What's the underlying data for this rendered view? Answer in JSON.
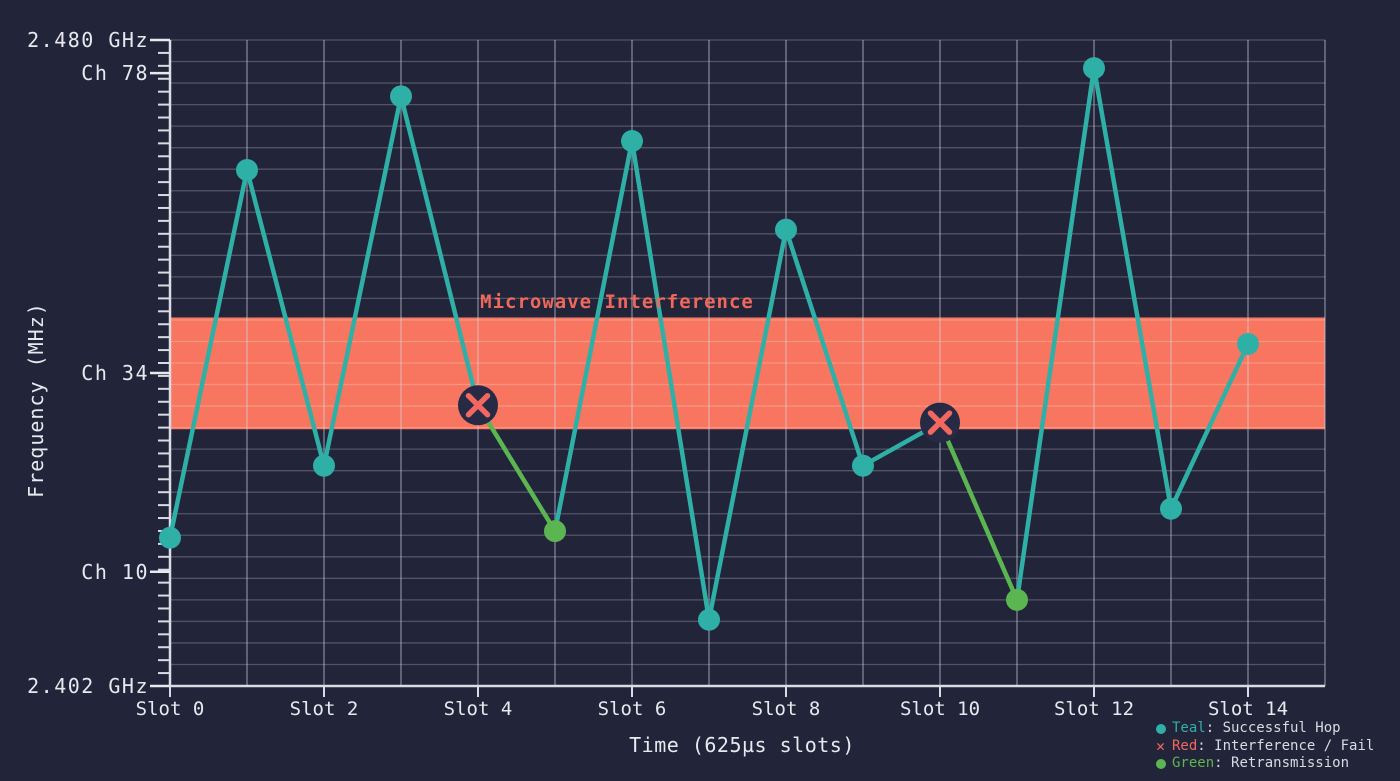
{
  "figure": {
    "background": "#22243a",
    "legend": [
      {
        "marker": "dot",
        "color": "#2fb0a7",
        "term": "Teal",
        "desc": ": Successful Hop"
      },
      {
        "marker": "x",
        "color": "#f2685f",
        "term": "Red",
        "desc": ": Interference / Fail"
      },
      {
        "marker": "dot",
        "color": "#5bb551",
        "term": "Green",
        "desc": ": Retransmission"
      }
    ]
  },
  "chart_data": {
    "type": "line",
    "title": "",
    "xlabel": "Time (625µs slots)",
    "ylabel": "Frequency (MHz)",
    "x_tick_labels": [
      "Slot 0",
      "Slot 2",
      "Slot 4",
      "Slot 6",
      "Slot 8",
      "Slot 10",
      "Slot 12",
      "Slot 14"
    ],
    "x_tick_slots": [
      0,
      2,
      4,
      6,
      8,
      10,
      12,
      14
    ],
    "x_range_slots": [
      0,
      15
    ],
    "y_range_channels": [
      0,
      78
    ],
    "y_ticks": [
      {
        "label": "2.480 GHz",
        "ch": 78
      },
      {
        "label": "Ch 78",
        "ch": 74
      },
      {
        "label": "Ch 34",
        "ch": 37.8
      },
      {
        "label": "Ch 10",
        "ch": 13.8
      },
      {
        "label": "2.402 GHz",
        "ch": 0
      }
    ],
    "grid": true,
    "legend_position": "bottom-right",
    "interference_band": {
      "label": "Microwave Interference",
      "ch_min": 31,
      "ch_max": 44.5,
      "color": "#f87660",
      "label_color": "#ef685c"
    },
    "status_colors": {
      "success": "#2fb0a7",
      "fail": "#f2685f",
      "retransmission": "#5bb551"
    },
    "fail_marker_bg": "#272a45",
    "series": {
      "name": "Frequency hop sequence",
      "points": [
        {
          "slot": 0,
          "ch": 17.9,
          "status": "success"
        },
        {
          "slot": 1,
          "ch": 62.3,
          "status": "success"
        },
        {
          "slot": 2,
          "ch": 26.6,
          "status": "success"
        },
        {
          "slot": 3,
          "ch": 71.2,
          "status": "success"
        },
        {
          "slot": 4,
          "ch": 33.9,
          "status": "fail"
        },
        {
          "slot": 5,
          "ch": 18.7,
          "status": "retransmission"
        },
        {
          "slot": 6,
          "ch": 65.8,
          "status": "success"
        },
        {
          "slot": 7,
          "ch": 8.0,
          "status": "success"
        },
        {
          "slot": 8,
          "ch": 55.1,
          "status": "success"
        },
        {
          "slot": 9,
          "ch": 26.6,
          "status": "success"
        },
        {
          "slot": 10,
          "ch": 31.8,
          "status": "fail"
        },
        {
          "slot": 11,
          "ch": 10.4,
          "status": "retransmission"
        },
        {
          "slot": 12,
          "ch": 74.6,
          "status": "success"
        },
        {
          "slot": 13,
          "ch": 21.4,
          "status": "success"
        },
        {
          "slot": 14,
          "ch": 41.3,
          "status": "success"
        }
      ]
    }
  }
}
